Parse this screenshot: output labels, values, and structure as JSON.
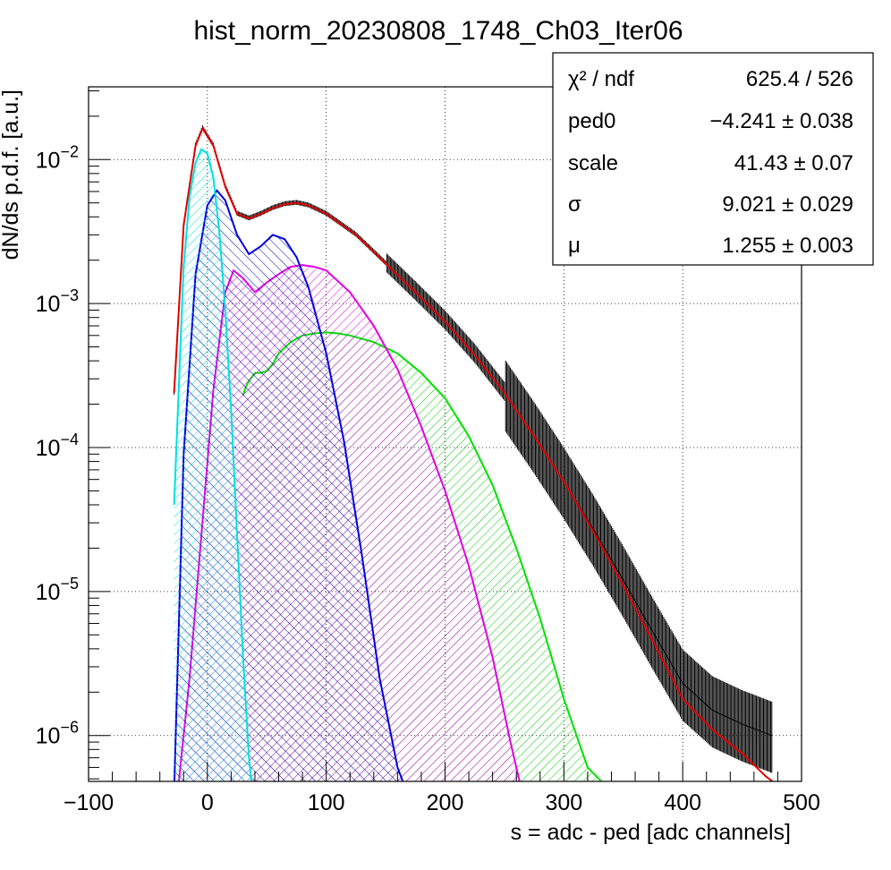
{
  "chart_data": {
    "type": "line",
    "title": "hist_norm_20230808_1748_Ch03_Iter06",
    "xlabel": "s = adc - ped [adc channels]",
    "ylabel": "dN/ds p.d.f. [a.u.]",
    "xlim": [
      -100,
      500
    ],
    "ylim": [
      4.8e-07,
      0.032
    ],
    "yscale": "log",
    "grid": true,
    "legend": "none",
    "x_ticks": [
      "−100",
      "0",
      "100",
      "200",
      "300",
      "400",
      "500"
    ],
    "y_ticks": [
      {
        "base": "10",
        "exp": "−2",
        "value": 0.01
      },
      {
        "base": "10",
        "exp": "−3",
        "value": 0.001
      },
      {
        "base": "10",
        "exp": "−4",
        "value": 0.0001
      },
      {
        "base": "10",
        "exp": "−5",
        "value": 1e-05
      },
      {
        "base": "10",
        "exp": "−6",
        "value": 1e-06
      }
    ],
    "stats_box": {
      "position": "top-right",
      "rows": [
        {
          "label": "χ² / ndf",
          "value": "625.4 / 526"
        },
        {
          "label": "ped0",
          "value": "−4.241 ± 0.038"
        },
        {
          "label": "scale",
          "value": "41.43 ± 0.07"
        },
        {
          "label": "σ",
          "value": "9.021 ± 0.029"
        },
        {
          "label": "μ",
          "value": "1.255 ± 0.003"
        }
      ]
    },
    "fit_parameters": {
      "ped0": -4.241,
      "scale": 41.43,
      "sigma": 9.021,
      "mu": 1.255
    },
    "series": [
      {
        "color": "#000000",
        "style": "histogram",
        "x": [
          -28,
          -20,
          -10,
          -4,
          5,
          15,
          25,
          35,
          45,
          55,
          65,
          75,
          85,
          100,
          125,
          150,
          175,
          200,
          225,
          250,
          275,
          300,
          325,
          350,
          375,
          400,
          425,
          450,
          475
        ],
        "y": [
          0.00024,
          0.0035,
          0.0125,
          0.0165,
          0.0125,
          0.0065,
          0.0042,
          0.0039,
          0.0042,
          0.0046,
          0.0049,
          0.005,
          0.0048,
          0.0042,
          0.003,
          0.0019,
          0.0012,
          0.00075,
          0.00044,
          0.00024,
          0.00012,
          5.8e-05,
          2.7e-05,
          1.2e-05,
          5.2e-06,
          2.3e-06,
          1.5e-06,
          1.2e-06,
          1e-06
        ]
      },
      {
        "color": "#e00000",
        "style": "line",
        "x": [
          -28,
          -20,
          -10,
          -4,
          5,
          15,
          25,
          35,
          45,
          55,
          65,
          75,
          85,
          100,
          125,
          150,
          175,
          200,
          225,
          250,
          275,
          300,
          325,
          350,
          375,
          400,
          425,
          450,
          470,
          480
        ],
        "y": [
          0.00024,
          0.0035,
          0.0125,
          0.0165,
          0.0125,
          0.0065,
          0.0042,
          0.0039,
          0.0042,
          0.0046,
          0.0049,
          0.005,
          0.0048,
          0.0042,
          0.003,
          0.0019,
          0.0012,
          0.00075,
          0.00044,
          0.00024,
          0.00012,
          5.8e-05,
          2.6e-05,
          1.1e-05,
          4.5e-06,
          1.8e-06,
          1.1e-06,
          7.5e-07,
          5.2e-07,
          4.5e-07
        ]
      },
      {
        "color": "#00e0e0",
        "style": "filled",
        "x": [
          -28,
          -20,
          -15,
          -10,
          -5,
          0,
          5,
          10,
          15,
          20,
          25,
          30,
          35,
          38
        ],
        "y": [
          4e-05,
          0.0018,
          0.0055,
          0.0095,
          0.0118,
          0.011,
          0.0075,
          0.0032,
          0.0009,
          0.00018,
          2.5e-05,
          3.5e-06,
          7e-07,
          4e-07
        ]
      },
      {
        "color": "#0000e0",
        "style": "filled",
        "x": [
          -28,
          -20,
          -10,
          0,
          8,
          15,
          25,
          35,
          45,
          55,
          65,
          75,
          85,
          100,
          115,
          130,
          145,
          160,
          168
        ],
        "y": [
          4e-07,
          9e-05,
          0.0016,
          0.0048,
          0.0061,
          0.0052,
          0.003,
          0.0022,
          0.0025,
          0.003,
          0.0028,
          0.0021,
          0.0013,
          0.00045,
          0.00011,
          1.8e-05,
          2.5e-06,
          6e-07,
          4e-07
        ]
      },
      {
        "color": "#e000e0",
        "style": "filled",
        "x": [
          -25,
          -15,
          -5,
          5,
          15,
          22,
          30,
          40,
          50,
          60,
          70,
          80,
          90,
          100,
          120,
          140,
          160,
          180,
          200,
          220,
          240,
          255,
          265
        ],
        "y": [
          4e-07,
          2.5e-06,
          2.5e-05,
          0.00025,
          0.0012,
          0.0017,
          0.0015,
          0.0012,
          0.0014,
          0.0016,
          0.0018,
          0.00185,
          0.0018,
          0.0017,
          0.0012,
          0.0007,
          0.00035,
          0.00014,
          5e-05,
          1.5e-05,
          3.5e-06,
          9e-07,
          4e-07
        ]
      },
      {
        "color": "#00e000",
        "style": "filled",
        "x": [
          30,
          32,
          35,
          40,
          45,
          50,
          55,
          60,
          70,
          80,
          90,
          100,
          110,
          120,
          140,
          160,
          180,
          200,
          220,
          240,
          260,
          280,
          300,
          320,
          335,
          343
        ],
        "y": [
          0.00023,
          0.00026,
          0.00029,
          0.00033,
          0.00033,
          0.00034,
          0.00038,
          0.00045,
          0.00054,
          0.0006,
          0.00062,
          0.00063,
          0.00062,
          0.0006,
          0.00054,
          0.00045,
          0.00033,
          0.00022,
          0.00012,
          5.5e-05,
          2e-05,
          6.5e-06,
          1.8e-06,
          6e-07,
          4.5e-07,
          4e-07
        ]
      }
    ]
  }
}
